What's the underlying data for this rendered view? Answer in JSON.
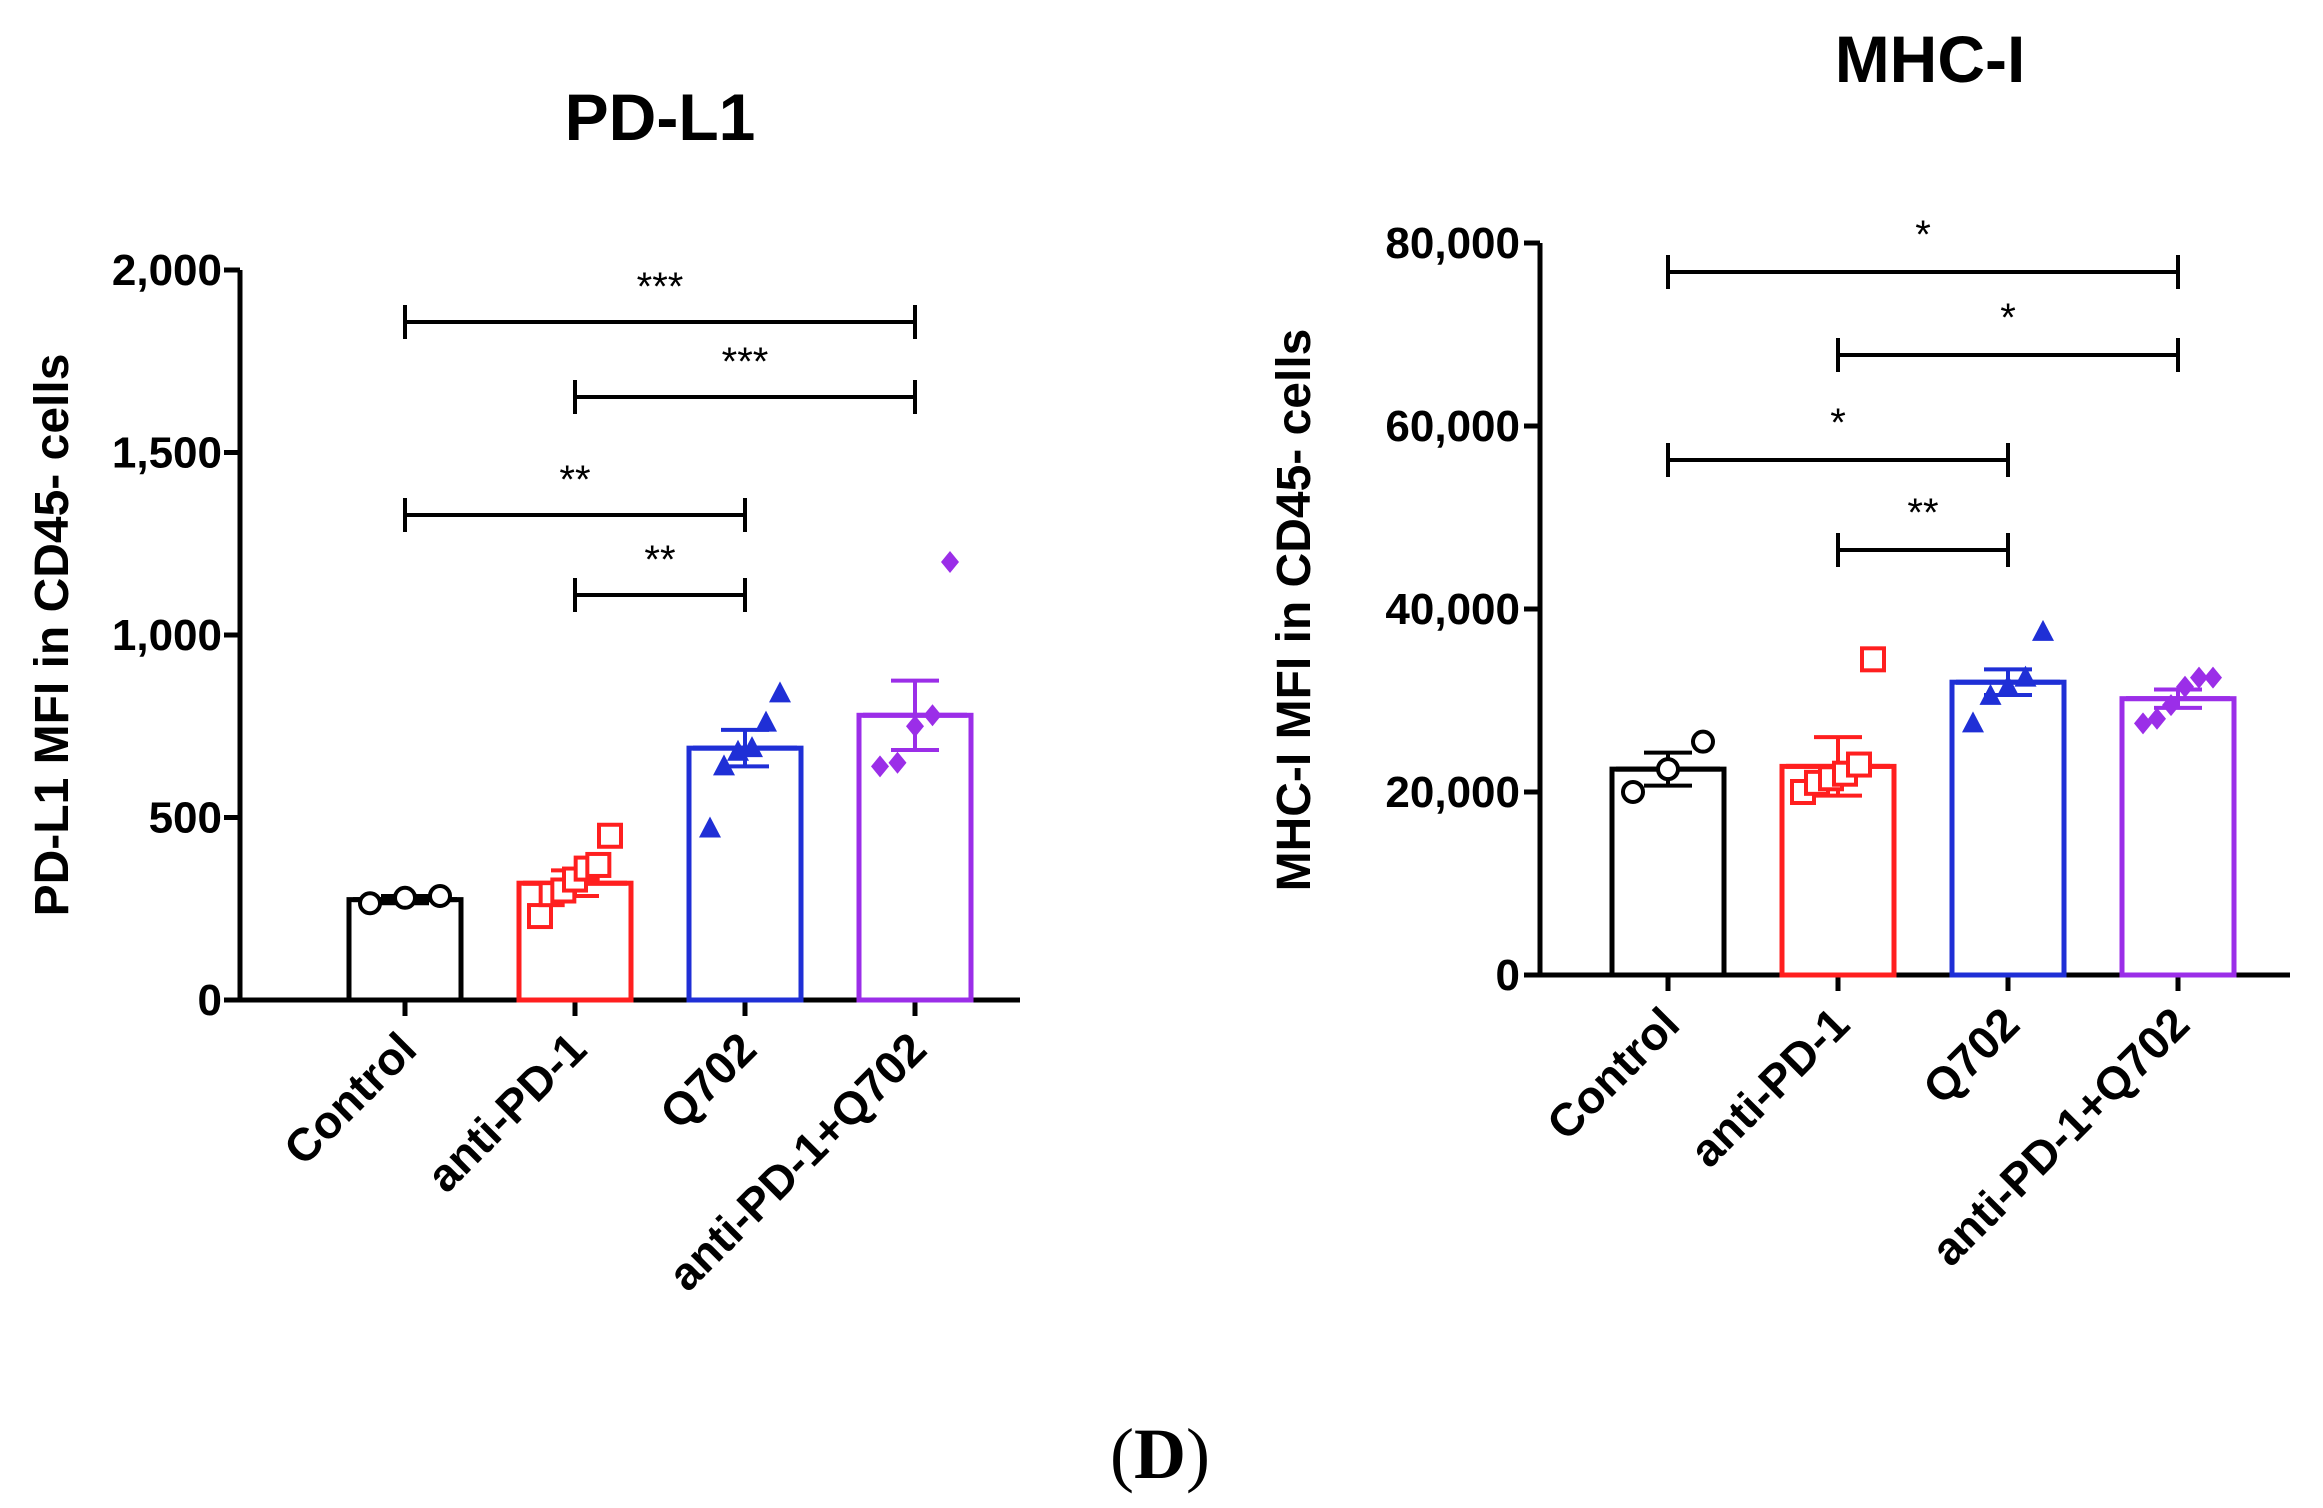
{
  "panel_label_open": "(",
  "panel_label_letter": "D",
  "panel_label_close": ")",
  "groups": [
    {
      "name": "Control",
      "color": "#000000",
      "marker": "circle"
    },
    {
      "name": "anti-PD-1",
      "color": "#ff1f1f",
      "marker": "square"
    },
    {
      "name": "Q702",
      "color": "#1f2fd6",
      "marker": "triangle"
    },
    {
      "name": "anti-PD-1+Q702",
      "color": "#9b2ee8",
      "marker": "diamond"
    }
  ],
  "chart_data": [
    {
      "type": "bar",
      "title": "PD-L1",
      "ylabel": "PD-L1 MFI in CD45- cells",
      "xlabel": "",
      "ylim": [
        0,
        2000
      ],
      "yticks": [
        0,
        500,
        1000,
        1500,
        2000
      ],
      "ytick_labels": [
        "0",
        "500",
        "1,000",
        "1,500",
        "2,000"
      ],
      "categories": [
        "Control",
        "anti-PD-1",
        "Q702",
        "anti-PD-1+Q702"
      ],
      "values": [
        275,
        320,
        690,
        780
      ],
      "sem": [
        10,
        35,
        50,
        95
      ],
      "points": [
        [
          265,
          280,
          285
        ],
        [
          230,
          290,
          300,
          330,
          360,
          370,
          450
        ],
        [
          470,
          640,
          680,
          690,
          760,
          840
        ],
        [
          640,
          650,
          750,
          780,
          1200
        ]
      ],
      "significance": [
        {
          "from": 0,
          "to": 3,
          "label": "***"
        },
        {
          "from": 1,
          "to": 3,
          "label": "***"
        },
        {
          "from": 0,
          "to": 2,
          "label": "**"
        },
        {
          "from": 1,
          "to": 2,
          "label": "**"
        }
      ]
    },
    {
      "type": "bar",
      "title": "MHC-I",
      "ylabel": "MHC-I MFI in CD45- cells",
      "xlabel": "",
      "ylim": [
        0,
        80000
      ],
      "yticks": [
        0,
        20000,
        40000,
        60000,
        80000
      ],
      "ytick_labels": [
        "0",
        "20,000",
        "40,000",
        "60,000",
        "80,000"
      ],
      "categories": [
        "Control",
        "anti-PD-1",
        "Q702",
        "anti-PD-1+Q702"
      ],
      "values": [
        22500,
        22800,
        32000,
        30200
      ],
      "sem": [
        1800,
        3200,
        1400,
        1000
      ],
      "points": [
        [
          20000,
          22500,
          25500
        ],
        [
          20000,
          21000,
          21500,
          22000,
          23000,
          34500
        ],
        [
          27500,
          30500,
          31500,
          32500,
          37500
        ],
        [
          27500,
          28000,
          29500,
          31500,
          32500,
          32500
        ]
      ],
      "significance": [
        {
          "from": 0,
          "to": 3,
          "label": "*"
        },
        {
          "from": 1,
          "to": 3,
          "label": "*"
        },
        {
          "from": 0,
          "to": 2,
          "label": "*"
        },
        {
          "from": 1,
          "to": 2,
          "label": "**"
        }
      ]
    }
  ]
}
